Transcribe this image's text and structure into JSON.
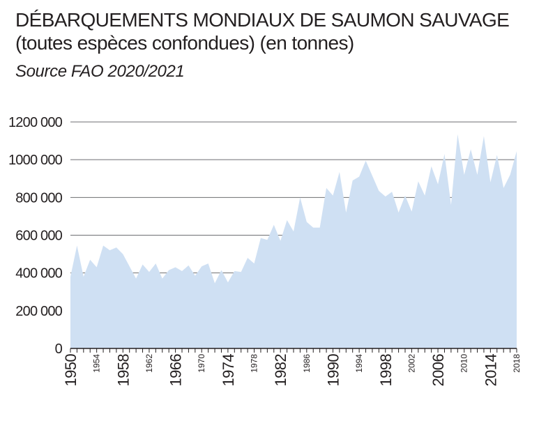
{
  "header": {
    "title_line1": "DÉBARQUEMENTS MONDIAUX DE SAUMON SAUVAGE",
    "title_line2": "(toutes espèces confondues) (en tonnes)",
    "source": "Source FAO 2020/2021"
  },
  "chart_data": {
    "type": "area",
    "title": "DÉBARQUEMENTS MONDIAUX DE SAUMON SAUVAGE (toutes espèces confondues) (en tonnes)",
    "subtitle": "Source FAO 2020/2021",
    "xlabel": "",
    "ylabel": "",
    "xlim": [
      1950,
      2018
    ],
    "ylim": [
      0,
      1200000
    ],
    "grid": true,
    "fill_color": "#cfe0f3",
    "yticks": [
      {
        "value": 0,
        "label": "0"
      },
      {
        "value": 200000,
        "label": "200 000"
      },
      {
        "value": 400000,
        "label": "400 000"
      },
      {
        "value": 600000,
        "label": "600 000"
      },
      {
        "value": 800000,
        "label": "800 000"
      },
      {
        "value": 1000000,
        "label": "1000 000"
      },
      {
        "value": 1200000,
        "label": "1200 000"
      }
    ],
    "xticks": [
      {
        "value": 1950,
        "label": "1950",
        "major": true
      },
      {
        "value": 1954,
        "label": "1954",
        "major": false
      },
      {
        "value": 1958,
        "label": "1958",
        "major": true
      },
      {
        "value": 1962,
        "label": "1962",
        "major": false
      },
      {
        "value": 1966,
        "label": "1966",
        "major": true
      },
      {
        "value": 1970,
        "label": "1970",
        "major": false
      },
      {
        "value": 1974,
        "label": "1974",
        "major": true
      },
      {
        "value": 1978,
        "label": "1978",
        "major": false
      },
      {
        "value": 1982,
        "label": "1982",
        "major": true
      },
      {
        "value": 1986,
        "label": "1986",
        "major": false
      },
      {
        "value": 1990,
        "label": "1990",
        "major": true
      },
      {
        "value": 1994,
        "label": "1994",
        "major": false
      },
      {
        "value": 1998,
        "label": "1998",
        "major": true
      },
      {
        "value": 2002,
        "label": "2002",
        "major": false
      },
      {
        "value": 2006,
        "label": "2006",
        "major": true
      },
      {
        "value": 2010,
        "label": "2010",
        "major": false
      },
      {
        "value": 2014,
        "label": "2014",
        "major": true
      },
      {
        "value": 2018,
        "label": "2018",
        "major": false
      }
    ],
    "series": [
      {
        "x": [
          1950,
          1951,
          1952,
          1953,
          1954,
          1955,
          1956,
          1957,
          1958,
          1959,
          1960,
          1961,
          1962,
          1963,
          1964,
          1965,
          1966,
          1967,
          1968,
          1969,
          1970,
          1971,
          1972,
          1973,
          1974,
          1975,
          1976,
          1977,
          1978,
          1979,
          1980,
          1981,
          1982,
          1983,
          1984,
          1985,
          1986,
          1987,
          1988,
          1989,
          1990,
          1991,
          1992,
          1993,
          1994,
          1995,
          1996,
          1997,
          1998,
          1999,
          2000,
          2001,
          2002,
          2003,
          2004,
          2005,
          2006,
          2007,
          2008,
          2009,
          2010,
          2011,
          2012,
          2013,
          2014,
          2015,
          2016,
          2017,
          2018
        ],
        "y": [
          380000,
          545000,
          380000,
          470000,
          430000,
          545000,
          520000,
          535000,
          500000,
          435000,
          370000,
          445000,
          405000,
          450000,
          370000,
          415000,
          430000,
          410000,
          440000,
          385000,
          435000,
          450000,
          345000,
          415000,
          350000,
          410000,
          405000,
          480000,
          450000,
          585000,
          575000,
          655000,
          570000,
          680000,
          620000,
          800000,
          670000,
          640000,
          640000,
          850000,
          810000,
          935000,
          720000,
          890000,
          910000,
          995000,
          915000,
          835000,
          805000,
          830000,
          720000,
          810000,
          725000,
          885000,
          810000,
          965000,
          870000,
          1030000,
          760000,
          1135000,
          920000,
          1055000,
          920000,
          1125000,
          880000,
          1025000,
          850000,
          920000,
          1045000
        ]
      }
    ]
  }
}
